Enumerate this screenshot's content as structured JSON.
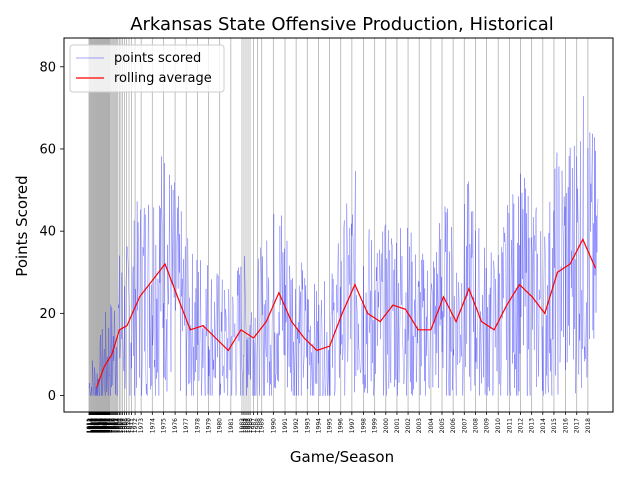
{
  "chart_data": {
    "type": "line",
    "title": "Arkansas State Offensive Production, Historical",
    "xlabel": "Game/Season",
    "ylabel": "Points Scored",
    "ylim": [
      -4,
      87
    ],
    "yticks": [
      0,
      20,
      40,
      60,
      80
    ],
    "x_range_games": [
      0,
      1005
    ],
    "grid": "vertical lines at each season start",
    "legend": "upper-left",
    "colors": {
      "points": "#0000ff",
      "rolling": "#ff0000",
      "grid": "#b0b0b0"
    },
    "series": [
      {
        "name": "points scored",
        "style": "thin translucent line",
        "values": []
      },
      {
        "name": "rolling average",
        "x_games": [
          15,
          30,
          45,
          60,
          75,
          100,
          125,
          150,
          175,
          200,
          225,
          250,
          275,
          300,
          325,
          350,
          375,
          400,
          425,
          450,
          475,
          500,
          525,
          550,
          575,
          600,
          625,
          650,
          675,
          700,
          725,
          750,
          775,
          800,
          825,
          850,
          875,
          900,
          925,
          950,
          975,
          1000
        ],
        "values": [
          2,
          7,
          10,
          16,
          17,
          24,
          28,
          32,
          24,
          16,
          17,
          14,
          11,
          16,
          14,
          18,
          25,
          18,
          14,
          11,
          12,
          20,
          27,
          20,
          18,
          22,
          21,
          16,
          16,
          24,
          18,
          26,
          18,
          16,
          22,
          27,
          24,
          20,
          30,
          32,
          38,
          31
        ]
      }
    ],
    "seasons": [
      {
        "label": "1911",
        "game": 0
      },
      {
        "label": "1912",
        "game": 1
      },
      {
        "label": "1913",
        "game": 2
      },
      {
        "label": "1914",
        "game": 3
      },
      {
        "label": "1915",
        "game": 4
      },
      {
        "label": "1916",
        "game": 5
      },
      {
        "label": "1919",
        "game": 6
      },
      {
        "label": "1920",
        "game": 7
      },
      {
        "label": "1921",
        "game": 8
      },
      {
        "label": "1922",
        "game": 9
      },
      {
        "label": "1923",
        "game": 10
      },
      {
        "label": "1924",
        "game": 11
      },
      {
        "label": "1925",
        "game": 12
      },
      {
        "label": "1926",
        "game": 13
      },
      {
        "label": "1927",
        "game": 14
      },
      {
        "label": "1928",
        "game": 15
      },
      {
        "label": "1929",
        "game": 16
      },
      {
        "label": "1930",
        "game": 17
      },
      {
        "label": "1931",
        "game": 18
      },
      {
        "label": "1932",
        "game": 19
      },
      {
        "label": "1933",
        "game": 20
      },
      {
        "label": "1934",
        "game": 21
      },
      {
        "label": "1935",
        "game": 22
      },
      {
        "label": "1936",
        "game": 23
      },
      {
        "label": "1937",
        "game": 24
      },
      {
        "label": "1938",
        "game": 25
      },
      {
        "label": "1939",
        "game": 26
      },
      {
        "label": "1940",
        "game": 27
      },
      {
        "label": "1941",
        "game": 28
      },
      {
        "label": "1942",
        "game": 29
      },
      {
        "label": "1945",
        "game": 30
      },
      {
        "label": "1946",
        "game": 31
      },
      {
        "label": "1947",
        "game": 32
      },
      {
        "label": "1948",
        "game": 33
      },
      {
        "label": "1949",
        "game": 34
      },
      {
        "label": "1950",
        "game": 35
      },
      {
        "label": "1951",
        "game": 36
      },
      {
        "label": "1952",
        "game": 37
      },
      {
        "label": "1953",
        "game": 38
      },
      {
        "label": "1954",
        "game": 39
      },
      {
        "label": "1955",
        "game": 40
      },
      {
        "label": "1956",
        "game": 41
      },
      {
        "label": "1957",
        "game": 43
      },
      {
        "label": "1958",
        "game": 45
      },
      {
        "label": "1959",
        "game": 47
      },
      {
        "label": "1960",
        "game": 49
      },
      {
        "label": "1961",
        "game": 51
      },
      {
        "label": "1962",
        "game": 53
      },
      {
        "label": "1963",
        "game": 55
      },
      {
        "label": "1964",
        "game": 57
      },
      {
        "label": "1965",
        "game": 60
      },
      {
        "label": "1966",
        "game": 63
      },
      {
        "label": "1967",
        "game": 66
      },
      {
        "label": "1968",
        "game": 70
      },
      {
        "label": "1969",
        "game": 74
      },
      {
        "label": "1970",
        "game": 79
      },
      {
        "label": "1971",
        "game": 84
      },
      {
        "label": "1972",
        "game": 91
      },
      {
        "label": "1973",
        "game": 103
      },
      {
        "label": "1974",
        "game": 125
      },
      {
        "label": "1975",
        "game": 147
      },
      {
        "label": "1976",
        "game": 170
      },
      {
        "label": "1977",
        "game": 192
      },
      {
        "label": "1978",
        "game": 214
      },
      {
        "label": "1979",
        "game": 236
      },
      {
        "label": "1980",
        "game": 258
      },
      {
        "label": "1981",
        "game": 280
      },
      {
        "label": "1982",
        "game": 302
      },
      {
        "label": "1983",
        "game": 306
      },
      {
        "label": "1984",
        "game": 310
      },
      {
        "label": "1985",
        "game": 314
      },
      {
        "label": "1986",
        "game": 318
      },
      {
        "label": "1987",
        "game": 325
      },
      {
        "label": "1988",
        "game": 333
      },
      {
        "label": "1989",
        "game": 341
      },
      {
        "label": "1990",
        "game": 364
      },
      {
        "label": "1991",
        "game": 387
      },
      {
        "label": "1992",
        "game": 409
      },
      {
        "label": "1993",
        "game": 431
      },
      {
        "label": "1994",
        "game": 453
      },
      {
        "label": "1995",
        "game": 475
      },
      {
        "label": "1996",
        "game": 497
      },
      {
        "label": "1997",
        "game": 519
      },
      {
        "label": "1998",
        "game": 542
      },
      {
        "label": "1999",
        "game": 564
      },
      {
        "label": "2000",
        "game": 586
      },
      {
        "label": "2001",
        "game": 608
      },
      {
        "label": "2002",
        "game": 630
      },
      {
        "label": "2003",
        "game": 652
      },
      {
        "label": "2004",
        "game": 675
      },
      {
        "label": "2005",
        "game": 697
      },
      {
        "label": "2006",
        "game": 719
      },
      {
        "label": "2007",
        "game": 741
      },
      {
        "label": "2008",
        "game": 763
      },
      {
        "label": "2009",
        "game": 785
      },
      {
        "label": "2010",
        "game": 808
      },
      {
        "label": "2011",
        "game": 830
      },
      {
        "label": "2012",
        "game": 852
      },
      {
        "label": "2013",
        "game": 874
      },
      {
        "label": "2014",
        "game": 896
      },
      {
        "label": "2015",
        "game": 918
      },
      {
        "label": "2016",
        "game": 941
      },
      {
        "label": "2017",
        "game": 963
      },
      {
        "label": "2018",
        "game": 985
      }
    ]
  }
}
